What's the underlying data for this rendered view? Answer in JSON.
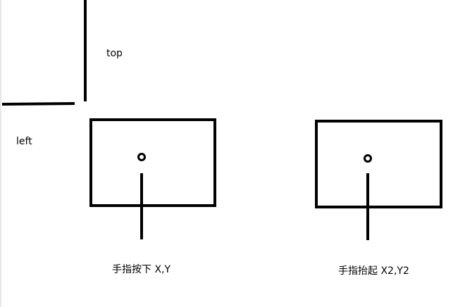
{
  "labels": {
    "top": "top",
    "left": "left",
    "finger_down": "手指按下  X,Y",
    "finger_up": "手指抬起  X2,Y2"
  },
  "colors": {
    "stroke": "#000000",
    "background": "#ffffff"
  }
}
